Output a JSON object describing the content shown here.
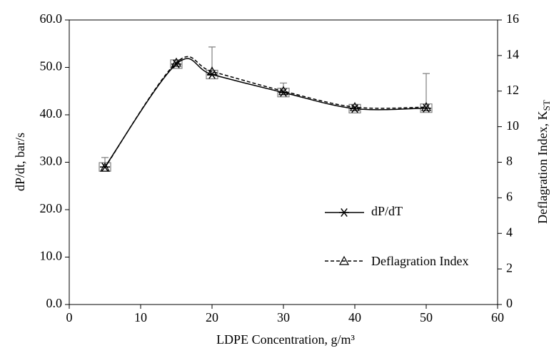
{
  "chart_data": {
    "type": "line",
    "x": [
      5,
      15,
      20,
      30,
      40,
      50
    ],
    "xlabel": "LDPE Concentration, g/m³",
    "ylabel": "dP/dt, bar/s",
    "y2label": "Deflagration Index, K",
    "y2label_sub": "ST",
    "xlim": [
      0,
      60
    ],
    "xticks": [
      0,
      10,
      20,
      30,
      40,
      50,
      60
    ],
    "ylim": [
      0,
      60
    ],
    "yticks": [
      {
        "value": 0,
        "label": "0.0"
      },
      {
        "value": 10,
        "label": "10.0"
      },
      {
        "value": 20,
        "label": "20.0"
      },
      {
        "value": 30,
        "label": "30.0"
      },
      {
        "value": 40,
        "label": "40.0"
      },
      {
        "value": 50,
        "label": "50.0"
      },
      {
        "value": 60,
        "label": "60.0"
      }
    ],
    "y2lim": [
      0,
      16
    ],
    "y2ticks": [
      0,
      2,
      4,
      6,
      8,
      10,
      12,
      14,
      16
    ],
    "series": [
      {
        "name": "dP/dT",
        "color": "#000000",
        "dash": false,
        "marker": "asterisk",
        "values": [
          29.0,
          50.7,
          48.5,
          44.7,
          41.3,
          41.4
        ],
        "errors": [
          2.0,
          0.8,
          5.8,
          2.0,
          0.5,
          7.3
        ],
        "error_color": "#808080"
      },
      {
        "name": "Deflagration Index",
        "color": "#000000",
        "dash": true,
        "marker": "triangle",
        "axis": "y2",
        "values": [
          7.7,
          13.6,
          13.1,
          12.0,
          11.1,
          11.1
        ]
      }
    ]
  }
}
